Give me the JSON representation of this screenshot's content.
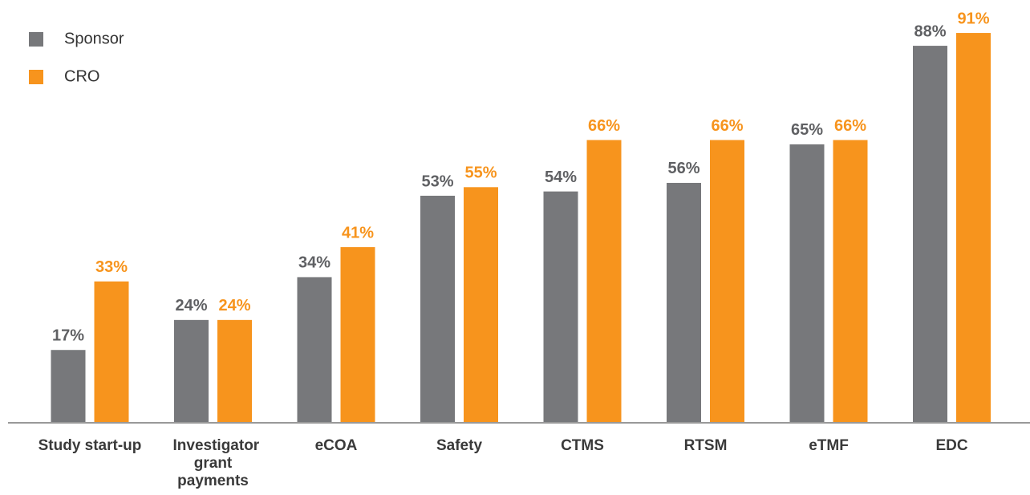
{
  "chart_data": {
    "type": "bar",
    "categories": [
      "Study start-up",
      "Investigator grant payments",
      "eCOA",
      "Safety",
      "CTMS",
      "RTSM",
      "eTMF",
      "EDC"
    ],
    "series": [
      {
        "name": "Sponsor",
        "color": "#77787b",
        "values": [
          17,
          24,
          34,
          53,
          54,
          56,
          65,
          88
        ],
        "value_labels": [
          "17%",
          "24%",
          "34%",
          "53%",
          "54%",
          "56%",
          "65%",
          "88%"
        ]
      },
      {
        "name": "CRO",
        "color": "#f7941d",
        "values": [
          33,
          24,
          41,
          55,
          66,
          66,
          66,
          91
        ],
        "value_labels": [
          "33%",
          "24%",
          "41%",
          "55%",
          "66%",
          "66%",
          "66%",
          "91%"
        ]
      }
    ],
    "ylim": [
      0,
      100
    ],
    "legend": "upper left"
  }
}
